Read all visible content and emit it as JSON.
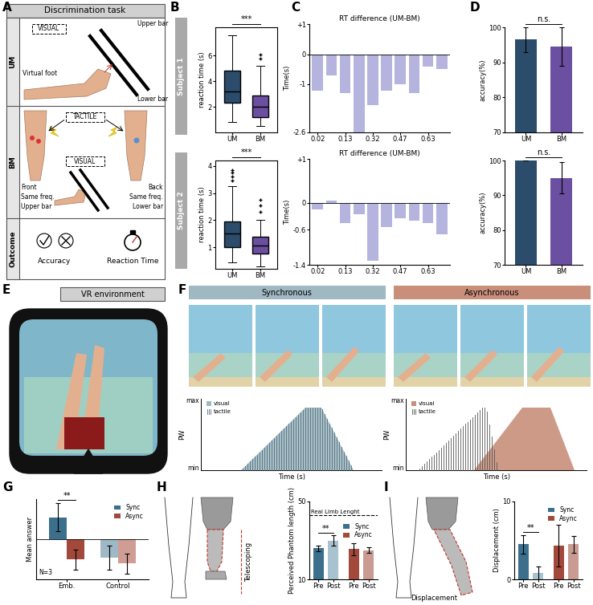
{
  "panel_letters": [
    "A",
    "B",
    "C",
    "D",
    "E",
    "F",
    "G",
    "H",
    "I"
  ],
  "discrimination_task": {
    "header": "Discrimination task",
    "rows": [
      "UM",
      "BM",
      "Outcome"
    ],
    "UM": {
      "modality": "VISUAL",
      "labels": [
        "Virtual foot",
        "Upper bar",
        "Lower bar"
      ]
    },
    "BM": {
      "tactile": "TACTILE",
      "visual": "VISUAL",
      "front": "Front",
      "back": "Back",
      "same_freq": "Same freq.",
      "upper_bar": "Upper bar",
      "lower_bar": "Lower bar"
    },
    "Outcome": {
      "accuracy": "Accuracy",
      "reaction_time": "Reaction Time"
    }
  },
  "vr_environment": {
    "header": "VR environment"
  },
  "stimulation_profiles": {
    "conditions": [
      {
        "name": "Synchronous",
        "color": "#9fb8c2"
      },
      {
        "name": "Asynchronous",
        "color": "#c98f7b"
      }
    ],
    "y_label": "PW",
    "max_label": "max",
    "min_label": "min",
    "x_label": "Time (s)",
    "visual_label": "visual",
    "tactile_label": "tactile"
  },
  "subjects": [
    "Subject 1",
    "Subject 2"
  ],
  "amputation_diagrams": {
    "telescoping": "Telescoping",
    "displacement": "Displacement"
  },
  "chart_data": [
    {
      "type": "box",
      "ylabel": "reaction time (s)",
      "categories": [
        "UM",
        "BM"
      ],
      "colors": [
        "#2b4d6b",
        "#6b4fa0"
      ],
      "boxes": [
        {
          "whislo": 0.8,
          "q1": 2.3,
          "med": 3.2,
          "q3": 4.8,
          "whishi": 7.6,
          "fliers": []
        },
        {
          "whislo": 0.5,
          "q1": 1.2,
          "med": 2.0,
          "q3": 2.9,
          "whishi": 5.2,
          "fliers": [
            5.75,
            6.05
          ]
        }
      ],
      "ylim": [
        0,
        8.2
      ],
      "yticks": [
        2,
        4,
        6
      ],
      "significance": "***"
    },
    {
      "type": "box",
      "ylabel": "reaction time (s)",
      "categories": [
        "UM",
        "BM"
      ],
      "colors": [
        "#2b4d6b",
        "#6b4fa0"
      ],
      "boxes": [
        {
          "whislo": 0.45,
          "q1": 1.0,
          "med": 1.5,
          "q3": 1.95,
          "whishi": 3.25,
          "fliers": [
            3.45,
            3.6,
            3.75,
            3.85
          ]
        },
        {
          "whislo": 0.3,
          "q1": 0.75,
          "med": 1.05,
          "q3": 1.4,
          "whishi": 2.0,
          "fliers": [
            2.3,
            2.55,
            2.75
          ]
        }
      ],
      "ylim": [
        0.2,
        4.2
      ],
      "yticks": [
        1,
        2,
        3,
        4
      ],
      "significance": "***"
    },
    {
      "type": "bar",
      "title": "RT difference (UM-BM)",
      "ylabel": "Time(s)",
      "color": "#b4b4df",
      "categories": [
        "0.02",
        null,
        "0.13",
        null,
        "0.32",
        null,
        "0.47",
        null,
        "0.63",
        null
      ],
      "values": [
        -1.2,
        -0.7,
        -1.3,
        -2.6,
        -1.7,
        -1.2,
        -1.0,
        -1.3,
        -0.4,
        -0.5
      ],
      "ylim": [
        -2.6,
        1
      ],
      "yticks": [
        {
          "value": 1,
          "label": "+1"
        },
        0,
        -1,
        -2.6
      ]
    },
    {
      "type": "bar",
      "title": "RT difference (UM-BM)",
      "ylabel": "Time(s)",
      "color": "#b4b4df",
      "categories": [
        "0.02",
        null,
        "0.13",
        null,
        "0.32",
        null,
        "0.47",
        null,
        "0.63",
        null
      ],
      "values": [
        -0.15,
        0.05,
        -0.45,
        -0.25,
        -1.3,
        -0.55,
        -0.35,
        -0.4,
        -0.45,
        -0.7
      ],
      "ylim": [
        -1.4,
        1
      ],
      "yticks": [
        {
          "value": 1,
          "label": "+1"
        },
        0,
        -0.6,
        -1.4
      ]
    },
    {
      "type": "bar",
      "ylabel": "accuracy(%)",
      "categories": [
        "UM",
        "BM"
      ],
      "colors": [
        "#2b4d6b",
        "#6b4fa0"
      ],
      "values": [
        96.5,
        94.5
      ],
      "errors": [
        3.5,
        5.5
      ],
      "ylim": [
        70,
        100
      ],
      "yticks": [
        70,
        80,
        90,
        100
      ],
      "significance": "n.s."
    },
    {
      "type": "bar",
      "ylabel": "accuracy(%)",
      "categories": [
        "UM",
        "BM"
      ],
      "colors": [
        "#2b4d6b",
        "#6b4fa0"
      ],
      "values": [
        100,
        95
      ],
      "errors": [
        0,
        4.5
      ],
      "ylim": [
        70,
        100
      ],
      "yticks": [
        70,
        80,
        90,
        100
      ],
      "significance": "n.s."
    },
    {
      "type": "grouped_bar",
      "ylabel": "Mean answer",
      "categories": [
        "Emb.",
        "Control"
      ],
      "series": [
        {
          "name": "Sync",
          "color": "#3b6f8c",
          "colors": [
            "#3b6f8c",
            "#9fb8c6"
          ],
          "values": [
            1.1,
            -0.9
          ],
          "errors": [
            0.7,
            0.6
          ]
        },
        {
          "name": "Async",
          "color": "#a3493c",
          "colors": [
            "#a3493c",
            "#cf9d94"
          ],
          "values": [
            -1.0,
            -1.2
          ],
          "errors": [
            0.5,
            0.5
          ]
        }
      ],
      "ylim": [
        -2,
        2
      ],
      "yticks": [],
      "tick_labels": "x",
      "legend": "upper right",
      "significance": "**",
      "note": "N=3"
    },
    {
      "type": "paired_bar",
      "ylabel": "Perceived Phantom length (cm)",
      "categories": [
        "Pre",
        "Post"
      ],
      "series": [
        {
          "name": "Sync",
          "color": "#3b6f8c",
          "colors": [
            "#3b6f8c",
            "#a8c3cf"
          ],
          "values": [
            26,
            30
          ],
          "errors": [
            1.5,
            2.5
          ]
        },
        {
          "name": "Async",
          "color": "#a3493c",
          "colors": [
            "#a3493c",
            "#c99b92"
          ],
          "values": [
            25.5,
            25
          ],
          "errors": [
            3,
            1.5
          ]
        }
      ],
      "ylim": [
        10,
        50
      ],
      "yticks": [
        10,
        50
      ],
      "legend": "upper right",
      "significance": "**",
      "reference": {
        "value": 43,
        "label": "Real Limb Lenght"
      }
    },
    {
      "type": "paired_bar",
      "ylabel": "Displacement (cm)",
      "categories": [
        "Pre",
        "Post"
      ],
      "series": [
        {
          "name": "Sync",
          "color": "#3b6f8c",
          "colors": [
            "#3b6f8c",
            "#a8c3cf"
          ],
          "values": [
            4.5,
            0.8
          ],
          "errors": [
            1.2,
            0.9
          ]
        },
        {
          "name": "Async",
          "color": "#a3493c",
          "colors": [
            "#a3493c",
            "#c99b92"
          ],
          "values": [
            4.3,
            4.5
          ],
          "errors": [
            2.7,
            1.1
          ]
        }
      ],
      "ylim": [
        0,
        10
      ],
      "yticks": [
        0,
        10
      ],
      "legend": "upper right",
      "significance": "**"
    }
  ]
}
